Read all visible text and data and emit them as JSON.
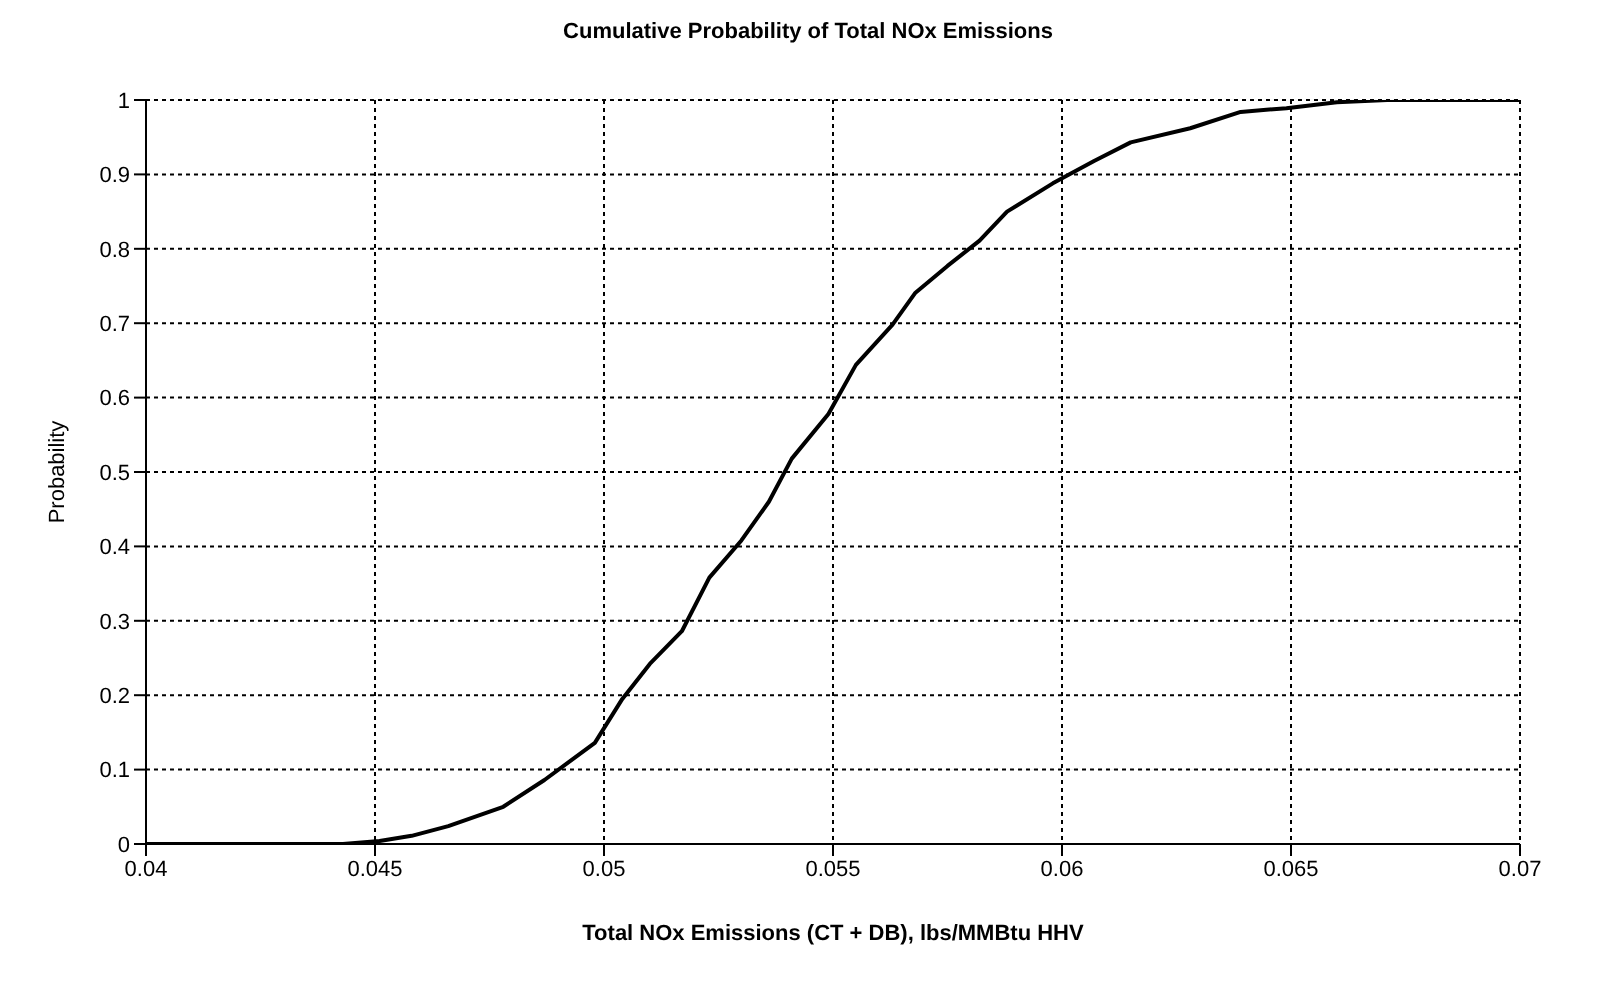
{
  "chart_data": {
    "type": "line",
    "title": "Cumulative Probability of Total NOx Emissions",
    "xlabel": "Total NOx Emissions (CT + DB), lbs/MMBtu HHV",
    "ylabel": "Probability",
    "x": [
      0.04,
      0.0443,
      0.0451,
      0.0458,
      0.0466,
      0.0478,
      0.0487,
      0.0498,
      0.0504,
      0.051,
      0.0517,
      0.0523,
      0.053,
      0.0536,
      0.0541,
      0.0549,
      0.0555,
      0.0563,
      0.0568,
      0.0575,
      0.0582,
      0.0588,
      0.0598,
      0.0607,
      0.0615,
      0.0628,
      0.0639,
      0.0649,
      0.066,
      0.0671,
      0.07
    ],
    "series": [
      {
        "color": "#000000",
        "values": [
          0,
          0,
          0.004,
          0.011,
          0.024,
          0.05,
          0.086,
          0.136,
          0.195,
          0.242,
          0.286,
          0.358,
          0.408,
          0.46,
          0.518,
          0.578,
          0.644,
          0.698,
          0.741,
          0.777,
          0.811,
          0.85,
          0.888,
          0.918,
          0.943,
          0.962,
          0.984,
          0.989,
          0.997,
          1,
          1
        ]
      }
    ],
    "xlim": [
      0.04,
      0.07
    ],
    "xticks": [
      0.04,
      0.045,
      0.05,
      0.055,
      0.06,
      0.065,
      0.07
    ],
    "ylim": [
      0,
      1
    ],
    "yticks": [
      0,
      0.1,
      0.2,
      0.3,
      0.4,
      0.5,
      0.6,
      0.7,
      0.8,
      0.9,
      1
    ],
    "grid": true,
    "legend": false,
    "marker": "none",
    "line_style": "solid"
  }
}
